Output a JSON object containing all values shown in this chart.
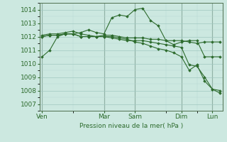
{
  "bg_color": "#cce8e0",
  "grid_color_h": "#b8d8d0",
  "grid_color_v": "#b8d8d0",
  "line_color": "#2d6b2d",
  "marker_color": "#2d6b2d",
  "xlabel": "Pression niveau de la mer( hPa )",
  "ylim": [
    1006.5,
    1014.5
  ],
  "yticks": [
    1007,
    1008,
    1009,
    1010,
    1011,
    1012,
    1013,
    1014
  ],
  "x_day_labels": [
    "Ven",
    "Mar",
    "Sam",
    "Dim",
    "Lun"
  ],
  "x_day_positions": [
    0,
    8,
    12,
    18,
    22
  ],
  "series": [
    {
      "x": [
        0,
        1,
        2,
        3,
        4,
        5,
        6,
        7,
        8,
        9,
        10,
        11,
        12,
        13,
        14,
        15,
        16,
        17,
        18,
        19,
        20,
        21,
        22,
        23
      ],
      "y": [
        1010.5,
        1011.0,
        1012.0,
        1012.2,
        1012.2,
        1012.3,
        1012.5,
        1012.3,
        1012.2,
        1013.4,
        1013.6,
        1013.5,
        1014.0,
        1014.1,
        1013.2,
        1012.8,
        1011.7,
        1011.4,
        1011.6,
        1011.7,
        1011.7,
        1010.5,
        1010.5,
        1010.5
      ]
    },
    {
      "x": [
        0,
        1,
        2,
        3,
        4,
        5,
        6,
        7,
        8,
        9,
        10,
        11,
        12,
        13,
        14,
        15,
        16,
        17,
        18,
        19,
        20,
        21,
        22,
        23
      ],
      "y": [
        1012.1,
        1012.2,
        1012.2,
        1012.3,
        1012.4,
        1012.2,
        1012.1,
        1012.0,
        1012.1,
        1012.1,
        1012.0,
        1011.9,
        1011.9,
        1011.9,
        1011.8,
        1011.8,
        1011.7,
        1011.7,
        1011.7,
        1011.6,
        1011.5,
        1011.6,
        1011.6,
        1011.6
      ]
    },
    {
      "x": [
        0,
        1,
        2,
        3,
        4,
        5,
        6,
        7,
        8,
        9,
        10,
        11,
        12,
        13,
        14,
        15,
        16,
        17,
        18,
        19,
        20,
        21,
        22,
        23
      ],
      "y": [
        1012.0,
        1012.1,
        1012.1,
        1012.2,
        1012.2,
        1012.0,
        1012.0,
        1012.0,
        1012.0,
        1011.9,
        1011.8,
        1011.7,
        1011.7,
        1011.7,
        1011.6,
        1011.5,
        1011.4,
        1011.3,
        1011.2,
        1009.9,
        1009.8,
        1009.0,
        1008.1,
        1007.8
      ]
    },
    {
      "x": [
        0,
        1,
        2,
        3,
        4,
        5,
        6,
        7,
        8,
        9,
        10,
        11,
        12,
        13,
        14,
        15,
        16,
        17,
        18,
        19,
        20,
        21,
        22,
        23
      ],
      "y": [
        1012.0,
        1012.1,
        1012.1,
        1012.2,
        1012.2,
        1012.0,
        1012.0,
        1012.0,
        1012.0,
        1012.0,
        1011.9,
        1011.8,
        1011.6,
        1011.5,
        1011.3,
        1011.1,
        1011.0,
        1010.8,
        1010.5,
        1009.5,
        1009.9,
        1008.7,
        1008.1,
        1008.0
      ]
    }
  ],
  "vline_color": "#708070",
  "vlines": [
    0,
    8,
    12,
    18,
    22
  ],
  "xlim": [
    -0.3,
    23.3
  ]
}
